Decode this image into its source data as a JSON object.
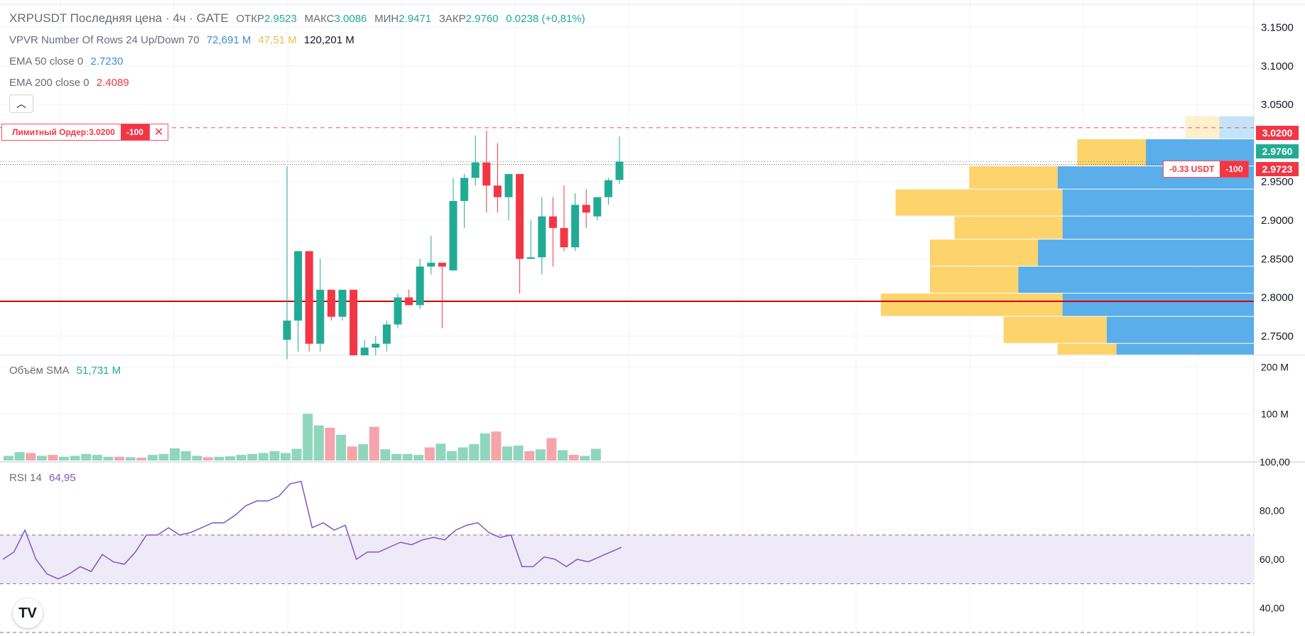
{
  "header": {
    "title": "XRPUSDT Последняя цена · 4ч · GATE",
    "open_label": "ОТКР",
    "open": "2.9523",
    "high_label": "МАКС",
    "high": "3.0086",
    "low_label": "МИН",
    "low": "2.9471",
    "close_label": "ЗАКР",
    "close": "2.9760",
    "change": "0.0238 (+0,81%)"
  },
  "indicators": {
    "vpvr": {
      "label": "VPVR Number Of Rows 24 Up/Down 70",
      "up": "72,691 M",
      "down": "47,51 M",
      "total": "120,201 M"
    },
    "ema50": {
      "label": "EMA 50 close 0",
      "value": "2.7230"
    },
    "ema200": {
      "label": "EMA 200 close 0",
      "value": "2.4089"
    },
    "volume_sma": {
      "label": "Объём SMA",
      "value": "51,731 M"
    },
    "rsi": {
      "label": "RSI 14",
      "value": "64,95"
    }
  },
  "orders": {
    "limit_label": "Лимитный Ордер:3.0200",
    "limit_qty": "-100",
    "close_icon": "close-icon",
    "position_pnl": "-0.33 USDT",
    "position_qty": "-100"
  },
  "price_tags": {
    "limit_price": "3.0200",
    "last_price": "2.9760",
    "position_price": "2.9723"
  },
  "colors": {
    "up": "#22ab94",
    "down": "#f23645",
    "vol_up": "#8fd6bd",
    "vol_down": "#f5a4ac",
    "vpvr_up": "#5aaeea",
    "vpvr_down": "#fdd36c",
    "rsi_line": "#7e57c2",
    "rsi_band": "#efeaf8",
    "support_line": "#d50000"
  },
  "chart_data": [
    {
      "type": "candlestick",
      "title": "XRPUSDT Последняя цена · 4ч · GATE",
      "ylim": [
        2.725,
        3.18
      ],
      "y_ticks": [
        "3.1500",
        "3.1000",
        "3.0500",
        "2.9500",
        "2.9000",
        "2.8500",
        "2.8000",
        "2.7500"
      ],
      "candles": [
        {
          "o": 2.745,
          "h": 2.97,
          "l": 2.72,
          "c": 2.77
        },
        {
          "o": 2.77,
          "h": 2.86,
          "l": 2.73,
          "c": 2.86
        },
        {
          "o": 2.86,
          "h": 2.86,
          "l": 2.73,
          "c": 2.74
        },
        {
          "o": 2.74,
          "h": 2.85,
          "l": 2.73,
          "c": 2.81
        },
        {
          "o": 2.81,
          "h": 2.81,
          "l": 2.77,
          "c": 2.775
        },
        {
          "o": 2.775,
          "h": 2.81,
          "l": 2.77,
          "c": 2.81
        },
        {
          "o": 2.81,
          "h": 2.81,
          "l": 2.725,
          "c": 2.725
        },
        {
          "o": 2.725,
          "h": 2.745,
          "l": 2.725,
          "c": 2.735
        },
        {
          "o": 2.735,
          "h": 2.75,
          "l": 2.725,
          "c": 2.74
        },
        {
          "o": 2.74,
          "h": 2.77,
          "l": 2.73,
          "c": 2.765
        },
        {
          "o": 2.765,
          "h": 2.805,
          "l": 2.76,
          "c": 2.8
        },
        {
          "o": 2.8,
          "h": 2.81,
          "l": 2.79,
          "c": 2.79
        },
        {
          "o": 2.79,
          "h": 2.85,
          "l": 2.785,
          "c": 2.84
        },
        {
          "o": 2.84,
          "h": 2.88,
          "l": 2.83,
          "c": 2.845
        },
        {
          "o": 2.845,
          "h": 2.845,
          "l": 2.76,
          "c": 2.84
        },
        {
          "o": 2.835,
          "h": 2.955,
          "l": 2.835,
          "c": 2.925
        },
        {
          "o": 2.925,
          "h": 2.96,
          "l": 2.89,
          "c": 2.955
        },
        {
          "o": 2.955,
          "h": 3.01,
          "l": 2.945,
          "c": 2.975
        },
        {
          "o": 2.975,
          "h": 3.016,
          "l": 2.91,
          "c": 2.945
        },
        {
          "o": 2.945,
          "h": 3.0,
          "l": 2.91,
          "c": 2.93
        },
        {
          "o": 2.93,
          "h": 2.96,
          "l": 2.9,
          "c": 2.96
        },
        {
          "o": 2.96,
          "h": 2.96,
          "l": 2.805,
          "c": 2.85
        },
        {
          "o": 2.85,
          "h": 2.9,
          "l": 2.85,
          "c": 2.852
        },
        {
          "o": 2.852,
          "h": 2.93,
          "l": 2.83,
          "c": 2.905
        },
        {
          "o": 2.905,
          "h": 2.93,
          "l": 2.84,
          "c": 2.89
        },
        {
          "o": 2.89,
          "h": 2.945,
          "l": 2.86,
          "c": 2.865
        },
        {
          "o": 2.865,
          "h": 2.935,
          "l": 2.86,
          "c": 2.92
        },
        {
          "o": 2.92,
          "h": 2.94,
          "l": 2.89,
          "c": 2.91
        },
        {
          "o": 2.905,
          "h": 2.93,
          "l": 2.9,
          "c": 2.93
        },
        {
          "o": 2.93,
          "h": 2.955,
          "l": 2.92,
          "c": 2.952
        },
        {
          "o": 2.9523,
          "h": 3.0086,
          "l": 2.9471,
          "c": 2.976
        }
      ],
      "horizontal_lines": [
        {
          "price": 3.02,
          "style": "dashed",
          "color": "#f7525f"
        },
        {
          "price": 2.9723,
          "style": "dotted",
          "color": "#f23645"
        },
        {
          "price": 2.795,
          "style": "solid",
          "color": "#d50000"
        }
      ],
      "volume_profile": [
        {
          "price_lo": 3.005,
          "price_hi": 3.035,
          "up": 7,
          "down": 7
        },
        {
          "price_lo": 2.97,
          "price_hi": 3.005,
          "up": 22,
          "down": 14
        },
        {
          "price_lo": 2.94,
          "price_hi": 2.97,
          "up": 40,
          "down": 18
        },
        {
          "price_lo": 2.905,
          "price_hi": 2.94,
          "up": 39,
          "down": 34
        },
        {
          "price_lo": 2.875,
          "price_hi": 2.905,
          "up": 39,
          "down": 22
        },
        {
          "price_lo": 2.84,
          "price_hi": 2.875,
          "up": 44,
          "down": 22
        },
        {
          "price_lo": 2.805,
          "price_hi": 2.84,
          "up": 48,
          "down": 18
        },
        {
          "price_lo": 2.775,
          "price_hi": 2.805,
          "up": 39,
          "down": 37
        },
        {
          "price_lo": 2.74,
          "price_hi": 2.775,
          "up": 30,
          "down": 21
        },
        {
          "price_lo": 2.725,
          "price_hi": 2.74,
          "up": 28,
          "down": 12
        }
      ]
    },
    {
      "type": "bar",
      "title": "Объём SMA",
      "ylim": [
        0,
        210
      ],
      "y_ticks": [
        "200 M",
        "100 M"
      ],
      "values": [
        10,
        18,
        16,
        10,
        12,
        8,
        10,
        14,
        12,
        8,
        8,
        7,
        6,
        12,
        14,
        26,
        20,
        10,
        7,
        8,
        9,
        12,
        14,
        16,
        20,
        16,
        25,
        100,
        75,
        70,
        55,
        30,
        35,
        72,
        24,
        14,
        14,
        12,
        28,
        36,
        20,
        28,
        35,
        58,
        62,
        30,
        32,
        20,
        24,
        48,
        22,
        12,
        10,
        25
      ],
      "directions": [
        "u",
        "u",
        "d",
        "u",
        "d",
        "u",
        "u",
        "u",
        "u",
        "u",
        "d",
        "u",
        "d",
        "u",
        "u",
        "u",
        "u",
        "u",
        "d",
        "u",
        "u",
        "u",
        "u",
        "u",
        "u",
        "u",
        "u",
        "u",
        "u",
        "d",
        "u",
        "d",
        "u",
        "d",
        "u",
        "u",
        "u",
        "u",
        "d",
        "u",
        "u",
        "u",
        "u",
        "u",
        "d",
        "u",
        "u",
        "d",
        "u",
        "d",
        "u",
        "d",
        "u",
        "u"
      ]
    },
    {
      "type": "line",
      "title": "RSI 14",
      "ylim": [
        30,
        100
      ],
      "y_ticks": [
        "100,00",
        "80,00",
        "60,00",
        "40,00"
      ],
      "bands": [
        70,
        50,
        30
      ],
      "values": [
        60,
        63,
        72,
        60,
        54,
        52,
        54,
        57,
        55,
        62,
        59,
        58,
        63,
        70,
        70,
        73,
        70,
        71,
        73,
        75,
        75,
        78,
        82,
        84,
        84,
        86,
        91,
        92,
        73,
        75,
        72,
        74,
        60,
        63,
        63,
        65,
        67,
        66,
        68,
        69,
        68,
        72,
        74,
        75,
        71,
        69,
        70,
        57,
        57,
        61,
        60,
        57,
        60,
        59,
        61,
        63,
        64.95
      ]
    }
  ]
}
